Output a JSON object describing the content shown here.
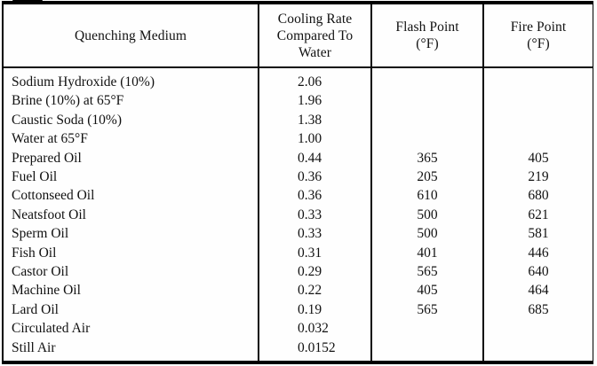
{
  "table": {
    "columns": [
      {
        "id": "medium",
        "label": "Quenching Medium"
      },
      {
        "id": "cooling_rate",
        "label": "Cooling Rate\nCompared To\nWater"
      },
      {
        "id": "flash_point",
        "label": "Flash Point\n(°F)"
      },
      {
        "id": "fire_point",
        "label": "Fire Point\n(°F)"
      }
    ],
    "rows": [
      {
        "medium": "Sodium Hydroxide (10%)",
        "cooling_rate": "2.06",
        "flash_point": "",
        "fire_point": ""
      },
      {
        "medium": "Brine (10%) at 65°F",
        "cooling_rate": "1.96",
        "flash_point": "",
        "fire_point": ""
      },
      {
        "medium": "Caustic Soda (10%)",
        "cooling_rate": "1.38",
        "flash_point": "",
        "fire_point": ""
      },
      {
        "medium": "Water at 65°F",
        "cooling_rate": "1.00",
        "flash_point": "",
        "fire_point": ""
      },
      {
        "medium": "Prepared Oil",
        "cooling_rate": "0.44",
        "flash_point": "365",
        "fire_point": "405"
      },
      {
        "medium": "Fuel Oil",
        "cooling_rate": "0.36",
        "flash_point": "205",
        "fire_point": "219"
      },
      {
        "medium": "Cottonseed Oil",
        "cooling_rate": "0.36",
        "flash_point": "610",
        "fire_point": "680"
      },
      {
        "medium": "Neatsfoot Oil",
        "cooling_rate": "0.33",
        "flash_point": "500",
        "fire_point": "621"
      },
      {
        "medium": "Sperm Oil",
        "cooling_rate": "0.33",
        "flash_point": "500",
        "fire_point": "581"
      },
      {
        "medium": "Fish Oil",
        "cooling_rate": "0.31",
        "flash_point": "401",
        "fire_point": "446"
      },
      {
        "medium": "Castor Oil",
        "cooling_rate": "0.29",
        "flash_point": "565",
        "fire_point": "640"
      },
      {
        "medium": "Machine Oil",
        "cooling_rate": "0.22",
        "flash_point": "405",
        "fire_point": "464"
      },
      {
        "medium": "Lard Oil",
        "cooling_rate": "0.19",
        "flash_point": "565",
        "fire_point": "685"
      },
      {
        "medium": "Circulated Air",
        "cooling_rate": "0.032",
        "flash_point": "",
        "fire_point": ""
      },
      {
        "medium": "Still Air",
        "cooling_rate": "0.0152",
        "flash_point": "",
        "fire_point": ""
      }
    ],
    "colors": {
      "border": "#000000",
      "text": "#111111",
      "background": "#fefefe"
    }
  }
}
